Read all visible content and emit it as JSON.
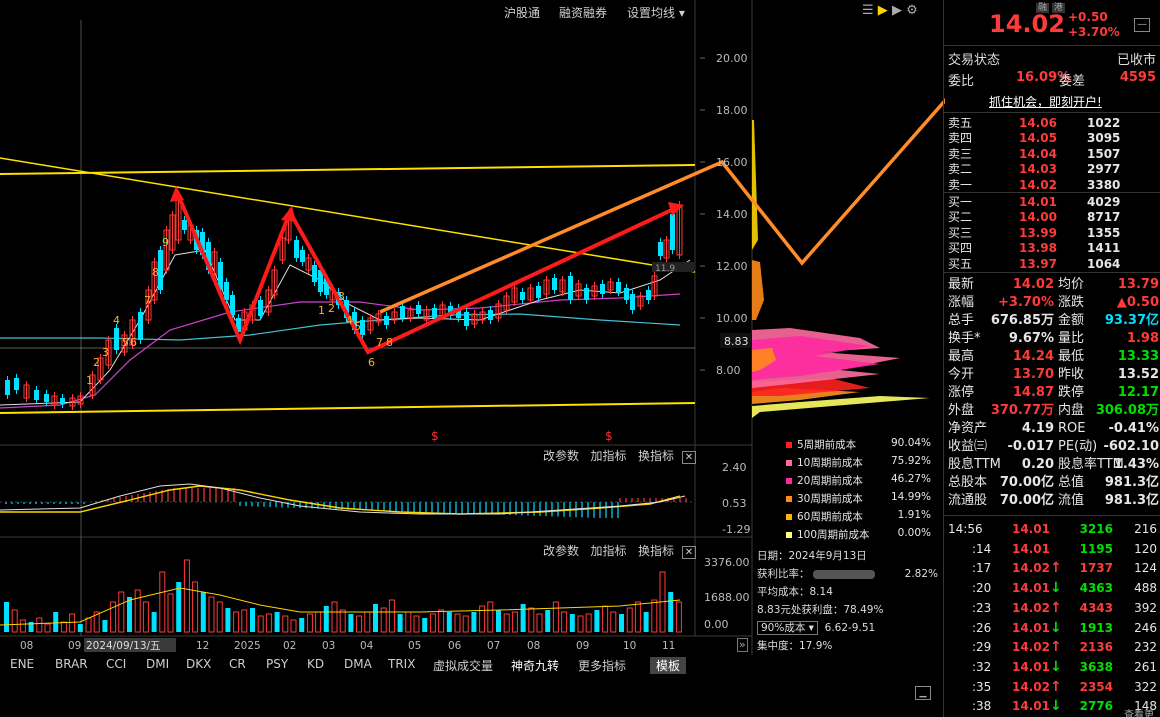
{
  "top_links": [
    "沪股通",
    "融资融券",
    "设置均线"
  ],
  "chart_data": {
    "type": "candlestick",
    "y_ticks": [
      "20.00",
      "18.00",
      "16.00",
      "14.00",
      "12.00",
      "10.00",
      "8.00"
    ],
    "crosshair_price": "8.83",
    "last_price_label": "11.9",
    "x_ticks": [
      "08",
      "09",
      "2024/09/13/五",
      "12",
      "2025",
      "02",
      "03",
      "04",
      "05",
      "06",
      "07",
      "08",
      "09",
      "10",
      "11"
    ],
    "nine_turn_labels": [
      "1",
      "2",
      "3",
      "4",
      "5",
      "6",
      "7",
      "8",
      "9",
      "1",
      "2",
      "3",
      "4",
      "5",
      "6",
      "7",
      "8"
    ],
    "macd_ticks": [
      "2.40",
      "0.53",
      "-1.29"
    ],
    "volume_ticks": [
      "3376.00",
      "1688.00",
      "0.00"
    ]
  },
  "indicator_bar": {
    "params": "改参数",
    "add": "加指标",
    "swap": "换指标"
  },
  "cost_legend": [
    {
      "label": "5周期前成本",
      "pct": "90.04%",
      "color": "#ff2020"
    },
    {
      "label": "10周期前成本",
      "pct": "75.92%",
      "color": "#ff6aa0"
    },
    {
      "label": "20周期前成本",
      "pct": "46.27%",
      "color": "#ff2aa0"
    },
    {
      "label": "30周期前成本",
      "pct": "14.99%",
      "color": "#ff8a1a"
    },
    {
      "label": "60周期前成本",
      "pct": "1.91%",
      "color": "#ffb400"
    },
    {
      "label": "100周期前成本",
      "pct": "0.00%",
      "color": "#ffff80"
    }
  ],
  "chip_info": {
    "date": "日期：2024年9月13日",
    "profit_label": "获利比率：",
    "profit_value": "2.82%",
    "avg_cost": "平均成本：8.14",
    "price_profit": "8.83元处获利盘：78.49%",
    "cost_select": "90%成本",
    "cost_range": "6.62-9.51",
    "concentration": "集中度：17.9%"
  },
  "bottom_tabs": [
    "ENE",
    "BRAR",
    "CCI",
    "DMI",
    "DKX",
    "CR",
    "PSY",
    "KD",
    "DMA",
    "TRIX",
    "虚拟成交量",
    "神奇九转",
    "更多指标",
    "模板"
  ],
  "quote": {
    "badges": [
      "融",
      "港"
    ],
    "price": "14.02",
    "change": "+0.50",
    "change_pct": "+3.70%",
    "status_label": "交易状态",
    "status_value": "已收市",
    "weibi_label": "委比",
    "weibi_value": "16.09%",
    "weicha_label": "委差",
    "weicha_value": "4595",
    "banner": "抓住机会，即刻开户!"
  },
  "asks": [
    {
      "label": "卖五",
      "price": "14.06",
      "vol": "1022"
    },
    {
      "label": "卖四",
      "price": "14.05",
      "vol": "3095"
    },
    {
      "label": "卖三",
      "price": "14.04",
      "vol": "1507"
    },
    {
      "label": "卖二",
      "price": "14.03",
      "vol": "2977"
    },
    {
      "label": "卖一",
      "price": "14.02",
      "vol": "3380"
    }
  ],
  "bids": [
    {
      "label": "买一",
      "price": "14.01",
      "vol": "4029"
    },
    {
      "label": "买二",
      "price": "14.00",
      "vol": "8717"
    },
    {
      "label": "买三",
      "price": "13.99",
      "vol": "1355"
    },
    {
      "label": "买四",
      "price": "13.98",
      "vol": "1411"
    },
    {
      "label": "买五",
      "price": "13.97",
      "vol": "1064"
    }
  ],
  "stats": [
    {
      "l1": "最新",
      "v1": "14.02",
      "c1": "red",
      "l2": "均价",
      "v2": "13.79",
      "c2": "red"
    },
    {
      "l1": "涨幅",
      "v1": "+3.70%",
      "c1": "red",
      "l2": "涨跌",
      "v2": "▲0.50",
      "c2": "red"
    },
    {
      "l1": "总手",
      "v1": "676.85万",
      "c1": "white",
      "l2": "金额",
      "v2": "93.37亿",
      "c2": "cyan"
    },
    {
      "l1": "换手*",
      "v1": "9.67%",
      "c1": "white",
      "l2": "量比",
      "v2": "1.98",
      "c2": "red"
    },
    {
      "l1": "最高",
      "v1": "14.24",
      "c1": "red",
      "l2": "最低",
      "v2": "13.33",
      "c2": "green"
    },
    {
      "l1": "今开",
      "v1": "13.70",
      "c1": "red",
      "l2": "昨收",
      "v2": "13.52",
      "c2": "white"
    },
    {
      "l1": "涨停",
      "v1": "14.87",
      "c1": "red",
      "l2": "跌停",
      "v2": "12.17",
      "c2": "green"
    },
    {
      "l1": "外盘",
      "v1": "370.77万",
      "c1": "red",
      "l2": "内盘",
      "v2": "306.08万",
      "c2": "green"
    },
    {
      "l1": "净资产",
      "v1": "4.19",
      "c1": "white",
      "l2": "ROE",
      "v2": "-0.41%",
      "c2": "white"
    },
    {
      "l1": "收益㈢",
      "v1": "-0.017",
      "c1": "white",
      "l2": "PE(动)",
      "v2": "-602.10",
      "c2": "white"
    },
    {
      "l1": "股息TTM",
      "v1": "0.20",
      "c1": "white",
      "l2": "股息率TTM",
      "v2": "1.43%",
      "c2": "white"
    },
    {
      "l1": "总股本",
      "v1": "70.00亿",
      "c1": "white",
      "l2": "总值",
      "v2": "981.3亿",
      "c2": "white"
    },
    {
      "l1": "流通股",
      "v1": "70.00亿",
      "c1": "white",
      "l2": "流值",
      "v2": "981.3亿",
      "c2": "white"
    }
  ],
  "ticks": [
    {
      "time": "14:56",
      "price": "14.01",
      "arrow": "",
      "vol": "3216",
      "vc": "green",
      "n": "216"
    },
    {
      "time": ":14",
      "price": "14.01",
      "arrow": "",
      "vol": "1195",
      "vc": "green",
      "n": "120"
    },
    {
      "time": ":17",
      "price": "14.02",
      "arrow": "↑",
      "vol": "1737",
      "vc": "red",
      "n": "124"
    },
    {
      "time": ":20",
      "price": "14.01",
      "arrow": "↓",
      "vol": "4363",
      "vc": "green",
      "n": "488"
    },
    {
      "time": ":23",
      "price": "14.02",
      "arrow": "↑",
      "vol": "4343",
      "vc": "red",
      "n": "392"
    },
    {
      "time": ":26",
      "price": "14.01",
      "arrow": "↓",
      "vol": "1913",
      "vc": "green",
      "n": "246"
    },
    {
      "time": ":29",
      "price": "14.02",
      "arrow": "↑",
      "vol": "2136",
      "vc": "red",
      "n": "232"
    },
    {
      "time": ":32",
      "price": "14.01",
      "arrow": "↓",
      "vol": "3638",
      "vc": "green",
      "n": "261"
    },
    {
      "time": ":35",
      "price": "14.02",
      "arrow": "↑",
      "vol": "2354",
      "vc": "red",
      "n": "322"
    },
    {
      "time": ":38",
      "price": "14.01",
      "arrow": "↓",
      "vol": "2776",
      "vc": "green",
      "n": "148"
    }
  ],
  "more_link": "查看更多"
}
